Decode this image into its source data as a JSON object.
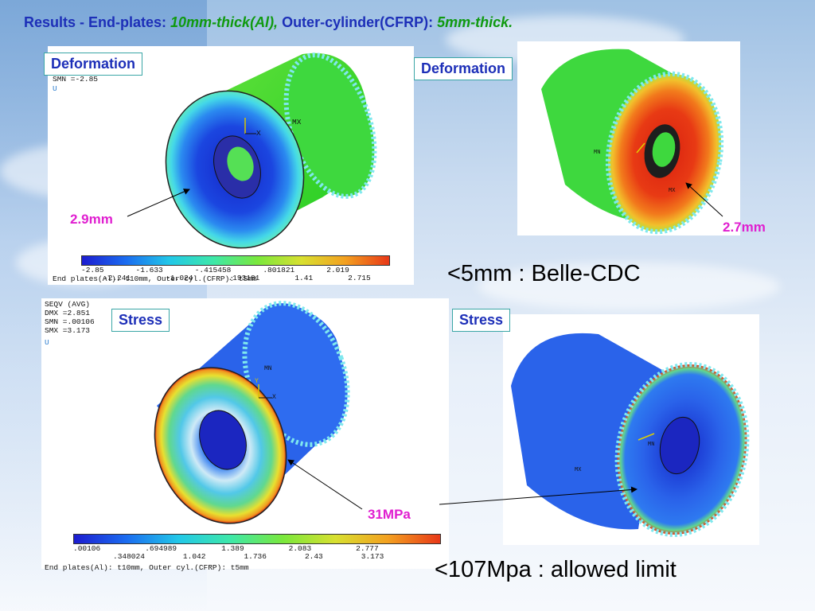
{
  "title": {
    "part1": "Results - End-plates: ",
    "part2": "10mm-thick(Al),",
    "part3": " Outer-cylinder(CFRP): ",
    "part4": "5mm-thick."
  },
  "labels": {
    "deformation_left": "Deformation",
    "deformation_right": "Deformation",
    "stress_left": "Stress",
    "stress_right": "Stress"
  },
  "annotations": {
    "def_left": "2.9mm",
    "def_right": "2.7mm",
    "stress": "31MPa"
  },
  "notes": {
    "belle": "<5mm : Belle-CDC",
    "limit": "<107Mpa : allowed limit"
  },
  "ansys_top": {
    "header_line1": "SMN =-2.85",
    "header_line2": "U",
    "tick_row1": [
      "-2.85",
      "-1.633",
      "-.415458",
      ".801821",
      "2.019"
    ],
    "tick_row2": [
      "-2.241",
      "-1.024",
      ".193181",
      "1.41",
      "2.715"
    ],
    "caption": "End plates(Al): t10mm, Outer cyl.(CFRP): t5mm",
    "mx": "MX",
    "axis_x": "X"
  },
  "ansys_bottom": {
    "header_lines": [
      "SEQV      (AVG)",
      "DMX =2.851",
      "SMN =.00106",
      "SMX =3.173",
      "U"
    ],
    "tick_row1": [
      ".00106",
      ".694989",
      "1.389",
      "2.083",
      "2.777"
    ],
    "tick_row2": [
      ".348024",
      "1.042",
      "1.736",
      "2.43",
      "3.173"
    ],
    "caption": "End plates(Al): t10mm, Outer cyl.(CFRP): t5mm",
    "mn": "MN",
    "axis_y": "Y",
    "axis_x": "X"
  },
  "ansys_right_top": {
    "mn": "MN",
    "mx": "MX"
  },
  "ansys_right_bottom": {
    "mn": "MN",
    "mx": "MX"
  },
  "colors": {
    "title": "#1d2fb8",
    "title_accent": "#109a10",
    "annotation": "#e01fd0",
    "label_border": "#3aa6a6"
  }
}
